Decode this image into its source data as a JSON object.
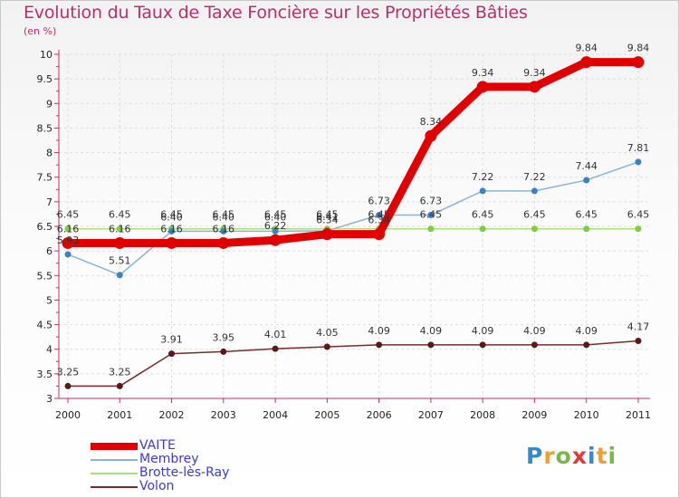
{
  "title": "Evolution du Taux de Taxe Foncière sur les Propriétés Bâties",
  "unit_label": "(en %)",
  "logo": {
    "text": "Proxiti",
    "letters": [
      {
        "ch": "P",
        "color": "#2e8ccf"
      },
      {
        "ch": "r",
        "color": "#f0a030"
      },
      {
        "ch": "o",
        "color": "#7ab648"
      },
      {
        "ch": "x",
        "color": "#e23a3a"
      },
      {
        "ch": "i",
        "color": "#2e8ccf"
      },
      {
        "ch": "t",
        "color": "#f0a030"
      },
      {
        "ch": "i",
        "color": "#7ab648"
      }
    ]
  },
  "chart_data": {
    "type": "line",
    "title": "Evolution du Taux de Taxe Foncière sur les Propriétés Bâties",
    "ylabel": "(en %)",
    "xlabel": "",
    "x": [
      "2000",
      "2001",
      "2002",
      "2003",
      "2004",
      "2005",
      "2006",
      "2007",
      "2008",
      "2009",
      "2010",
      "2011"
    ],
    "ylim": [
      3,
      10
    ],
    "yticks": [
      "3",
      "3.5",
      "4",
      "4.5",
      "5",
      "5.5",
      "6",
      "6.5",
      "7",
      "7.5",
      "8",
      "8.5",
      "9",
      "9.5",
      "10"
    ],
    "legend_position": "bottom-left",
    "series": [
      {
        "name": "VAITE",
        "color": "#e00000",
        "width": 9,
        "marker_color": "#e00000",
        "values": [
          6.16,
          6.16,
          6.16,
          6.16,
          6.22,
          6.34,
          6.34,
          8.34,
          9.34,
          9.34,
          9.84,
          9.84
        ],
        "labels": [
          "6.16",
          "6.16",
          "6.16",
          "6.16",
          "6.22",
          "6.34",
          "6.34",
          "8.34",
          "9.34",
          "9.34",
          "9.84",
          "9.84"
        ]
      },
      {
        "name": "Membrey",
        "color": "#8ab4d8",
        "width": 1.5,
        "marker_color": "#3c82c2",
        "values": [
          5.93,
          5.51,
          6.4,
          6.4,
          6.4,
          6.41,
          6.73,
          6.73,
          7.22,
          7.22,
          7.44,
          7.81
        ],
        "labels": [
          "5.93",
          "5.51",
          "6.40",
          "6.40",
          "6.40",
          "6.41",
          "6.73",
          "6.73",
          "7.22",
          "7.22",
          "7.44",
          "7.81"
        ]
      },
      {
        "name": "Brotte-lès-Ray",
        "color": "#a8e080",
        "width": 1.5,
        "marker_color": "#7ecf3f",
        "values": [
          6.45,
          6.45,
          6.45,
          6.45,
          6.45,
          6.45,
          6.45,
          6.45,
          6.45,
          6.45,
          6.45,
          6.45
        ],
        "labels": [
          "6.45",
          "6.45",
          "6.45",
          "6.45",
          "6.45",
          "6.45",
          "6.45",
          "6.45",
          "6.45",
          "6.45",
          "6.45",
          "6.45"
        ]
      },
      {
        "name": "Volon",
        "color": "#7a2a2a",
        "width": 1.5,
        "marker_color": "#5a1818",
        "values": [
          3.25,
          3.25,
          3.91,
          3.95,
          4.01,
          4.05,
          4.09,
          4.09,
          4.09,
          4.09,
          4.09,
          4.17
        ],
        "labels": [
          "3.25",
          "3.25",
          "3.91",
          "3.95",
          "4.01",
          "4.05",
          "4.09",
          "4.09",
          "4.09",
          "4.09",
          "4.09",
          "4.17"
        ]
      }
    ]
  }
}
